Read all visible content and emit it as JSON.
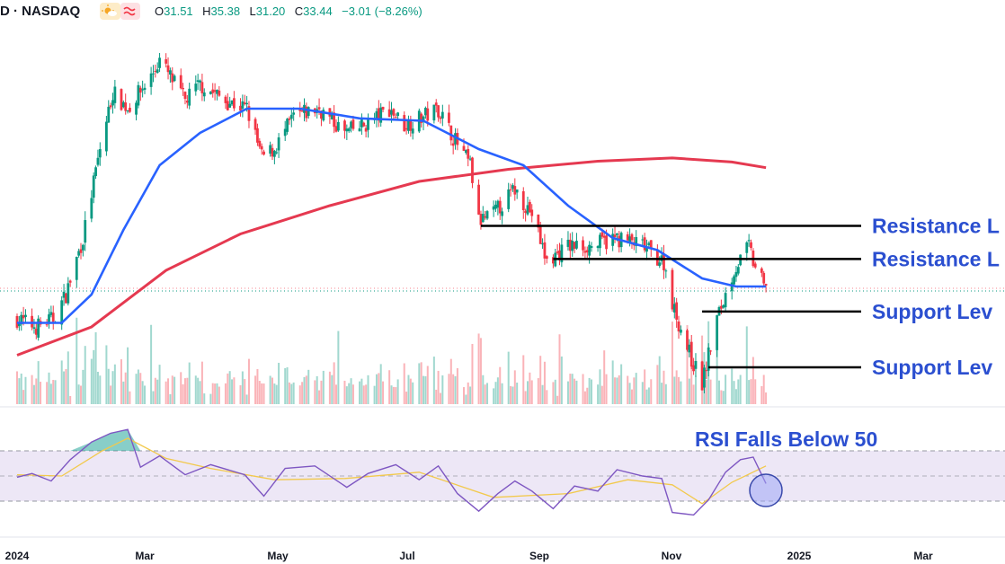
{
  "header": {
    "symbol": "D · NASDAQ",
    "sun_icon": "sun-cloud-icon",
    "wave_icon": "approx-icon",
    "open_label": "O",
    "open": "31.51",
    "high_label": "H",
    "high": "35.38",
    "low_label": "L",
    "low": "31.20",
    "close_label": "C",
    "close": "33.44",
    "change": "−3.01 (−8.26%)"
  },
  "colors": {
    "up": "#089981",
    "down": "#f23645",
    "ma_short": "#2962ff",
    "ma_long": "#e53950",
    "annotation": "#2b4fd0",
    "rsi_line": "#7e57c2",
    "rsi_ma": "#f2c94c",
    "rsi_band": "#ede7f6"
  },
  "chart_data": [
    {
      "type": "candlestick",
      "x_axis": {
        "labels": [
          "2024",
          "Mar",
          "May",
          "Jul",
          "Sep",
          "Nov",
          "2025",
          "Mar"
        ]
      },
      "ylim": [
        20,
        65
      ],
      "anchors": [
        {
          "date": "2024-01-01",
          "price": 30
        },
        {
          "date": "2024-01-10",
          "price": 29
        },
        {
          "date": "2024-01-18",
          "price": 30
        },
        {
          "date": "2024-01-24",
          "price": 33
        },
        {
          "date": "2024-02-01",
          "price": 40
        },
        {
          "date": "2024-02-09",
          "price": 51
        },
        {
          "date": "2024-02-15",
          "price": 58
        },
        {
          "date": "2024-02-22",
          "price": 56
        },
        {
          "date": "2024-03-04",
          "price": 60
        },
        {
          "date": "2024-03-08",
          "price": 62
        },
        {
          "date": "2024-03-20",
          "price": 57
        },
        {
          "date": "2024-03-27",
          "price": 59
        },
        {
          "date": "2024-04-08",
          "price": 57
        },
        {
          "date": "2024-04-18",
          "price": 56
        },
        {
          "date": "2024-04-25",
          "price": 50
        },
        {
          "date": "2024-05-01",
          "price": 51
        },
        {
          "date": "2024-05-10",
          "price": 55
        },
        {
          "date": "2024-05-22",
          "price": 56
        },
        {
          "date": "2024-06-03",
          "price": 53
        },
        {
          "date": "2024-06-13",
          "price": 54
        },
        {
          "date": "2024-06-24",
          "price": 56
        },
        {
          "date": "2024-07-01",
          "price": 54
        },
        {
          "date": "2024-07-10",
          "price": 55
        },
        {
          "date": "2024-07-17",
          "price": 56
        },
        {
          "date": "2024-07-25",
          "price": 52
        },
        {
          "date": "2024-08-01",
          "price": 49
        },
        {
          "date": "2024-08-05",
          "price": 42
        },
        {
          "date": "2024-08-12",
          "price": 43
        },
        {
          "date": "2024-08-22",
          "price": 46
        },
        {
          "date": "2024-08-30",
          "price": 43
        },
        {
          "date": "2024-09-06",
          "price": 37
        },
        {
          "date": "2024-09-16",
          "price": 39
        },
        {
          "date": "2024-09-27",
          "price": 39
        },
        {
          "date": "2024-10-09",
          "price": 40
        },
        {
          "date": "2024-10-21",
          "price": 39
        },
        {
          "date": "2024-10-31",
          "price": 37
        },
        {
          "date": "2024-11-05",
          "price": 31
        },
        {
          "date": "2024-11-13",
          "price": 25
        },
        {
          "date": "2024-11-18",
          "price": 22
        },
        {
          "date": "2024-11-25",
          "price": 30
        },
        {
          "date": "2024-12-03",
          "price": 36
        },
        {
          "date": "2024-12-10",
          "price": 39
        },
        {
          "date": "2024-12-12",
          "price": 37
        },
        {
          "date": "2024-12-18",
          "price": 33.44
        }
      ],
      "sma_short": [
        {
          "date": "2024-01-01",
          "price": 29.5
        },
        {
          "date": "2024-01-22",
          "price": 29.5
        },
        {
          "date": "2024-02-05",
          "price": 33
        },
        {
          "date": "2024-02-20",
          "price": 41
        },
        {
          "date": "2024-03-08",
          "price": 49
        },
        {
          "date": "2024-03-27",
          "price": 53
        },
        {
          "date": "2024-04-18",
          "price": 56
        },
        {
          "date": "2024-05-13",
          "price": 56
        },
        {
          "date": "2024-06-10",
          "price": 54.8
        },
        {
          "date": "2024-07-10",
          "price": 54.5
        },
        {
          "date": "2024-08-05",
          "price": 51
        },
        {
          "date": "2024-08-26",
          "price": 49
        },
        {
          "date": "2024-09-16",
          "price": 44
        },
        {
          "date": "2024-10-07",
          "price": 40
        },
        {
          "date": "2024-10-28",
          "price": 38.5
        },
        {
          "date": "2024-11-18",
          "price": 35
        },
        {
          "date": "2024-12-04",
          "price": 34
        },
        {
          "date": "2024-12-18",
          "price": 34
        }
      ],
      "sma_long": [
        {
          "date": "2024-01-01",
          "price": 25.5
        },
        {
          "date": "2024-02-05",
          "price": 29
        },
        {
          "date": "2024-03-11",
          "price": 36
        },
        {
          "date": "2024-04-15",
          "price": 40.5
        },
        {
          "date": "2024-05-27",
          "price": 44
        },
        {
          "date": "2024-07-08",
          "price": 47
        },
        {
          "date": "2024-08-19",
          "price": 48.5
        },
        {
          "date": "2024-09-30",
          "price": 49.5
        },
        {
          "date": "2024-11-04",
          "price": 49.9
        },
        {
          "date": "2024-12-02",
          "price": 49.4
        },
        {
          "date": "2024-12-18",
          "price": 48.7
        }
      ],
      "levels": [
        {
          "label": "Resistance L",
          "price": 41.5,
          "from": "2024-08-06"
        },
        {
          "label": "Resistance L",
          "price": 37.4,
          "from": "2024-09-09"
        },
        {
          "label": "Support Lev",
          "price": 30.9,
          "from": "2024-11-18"
        },
        {
          "label": "Support Lev",
          "price": 24.0,
          "from": "2024-11-21"
        }
      ]
    },
    {
      "type": "line",
      "ylim": [
        0,
        100
      ],
      "band": [
        30,
        70
      ],
      "midline": 50,
      "annotation": "RSI Falls Below 50",
      "rsi": [
        {
          "date": "2024-01-01",
          "v": 49
        },
        {
          "date": "2024-01-08",
          "v": 52
        },
        {
          "date": "2024-01-17",
          "v": 46
        },
        {
          "date": "2024-01-26",
          "v": 63
        },
        {
          "date": "2024-02-05",
          "v": 77
        },
        {
          "date": "2024-02-14",
          "v": 84
        },
        {
          "date": "2024-02-22",
          "v": 87
        },
        {
          "date": "2024-02-28",
          "v": 57
        },
        {
          "date": "2024-03-08",
          "v": 66
        },
        {
          "date": "2024-03-20",
          "v": 51
        },
        {
          "date": "2024-04-01",
          "v": 59
        },
        {
          "date": "2024-04-17",
          "v": 51
        },
        {
          "date": "2024-04-26",
          "v": 34
        },
        {
          "date": "2024-05-06",
          "v": 56
        },
        {
          "date": "2024-05-20",
          "v": 58
        },
        {
          "date": "2024-06-04",
          "v": 41
        },
        {
          "date": "2024-06-14",
          "v": 52
        },
        {
          "date": "2024-06-27",
          "v": 59
        },
        {
          "date": "2024-07-08",
          "v": 47
        },
        {
          "date": "2024-07-17",
          "v": 58
        },
        {
          "date": "2024-07-26",
          "v": 36
        },
        {
          "date": "2024-08-05",
          "v": 22
        },
        {
          "date": "2024-08-14",
          "v": 36
        },
        {
          "date": "2024-08-22",
          "v": 46
        },
        {
          "date": "2024-08-30",
          "v": 38
        },
        {
          "date": "2024-09-09",
          "v": 24
        },
        {
          "date": "2024-09-19",
          "v": 42
        },
        {
          "date": "2024-09-30",
          "v": 38
        },
        {
          "date": "2024-10-09",
          "v": 55
        },
        {
          "date": "2024-10-21",
          "v": 50
        },
        {
          "date": "2024-10-30",
          "v": 48
        },
        {
          "date": "2024-11-04",
          "v": 21
        },
        {
          "date": "2024-11-14",
          "v": 19
        },
        {
          "date": "2024-11-21",
          "v": 31
        },
        {
          "date": "2024-11-29",
          "v": 53
        },
        {
          "date": "2024-12-06",
          "v": 63
        },
        {
          "date": "2024-12-12",
          "v": 65
        },
        {
          "date": "2024-12-18",
          "v": 44
        }
      ],
      "rsi_ma": [
        {
          "date": "2024-01-01",
          "v": 51
        },
        {
          "date": "2024-01-22",
          "v": 50
        },
        {
          "date": "2024-02-10",
          "v": 70
        },
        {
          "date": "2024-02-22",
          "v": 80
        },
        {
          "date": "2024-03-11",
          "v": 64
        },
        {
          "date": "2024-04-01",
          "v": 56
        },
        {
          "date": "2024-05-01",
          "v": 47
        },
        {
          "date": "2024-06-03",
          "v": 48
        },
        {
          "date": "2024-07-08",
          "v": 53
        },
        {
          "date": "2024-08-12",
          "v": 33
        },
        {
          "date": "2024-09-16",
          "v": 36
        },
        {
          "date": "2024-10-14",
          "v": 47
        },
        {
          "date": "2024-11-04",
          "v": 43
        },
        {
          "date": "2024-11-18",
          "v": 28
        },
        {
          "date": "2024-12-02",
          "v": 45
        },
        {
          "date": "2024-12-18",
          "v": 58
        }
      ]
    }
  ]
}
